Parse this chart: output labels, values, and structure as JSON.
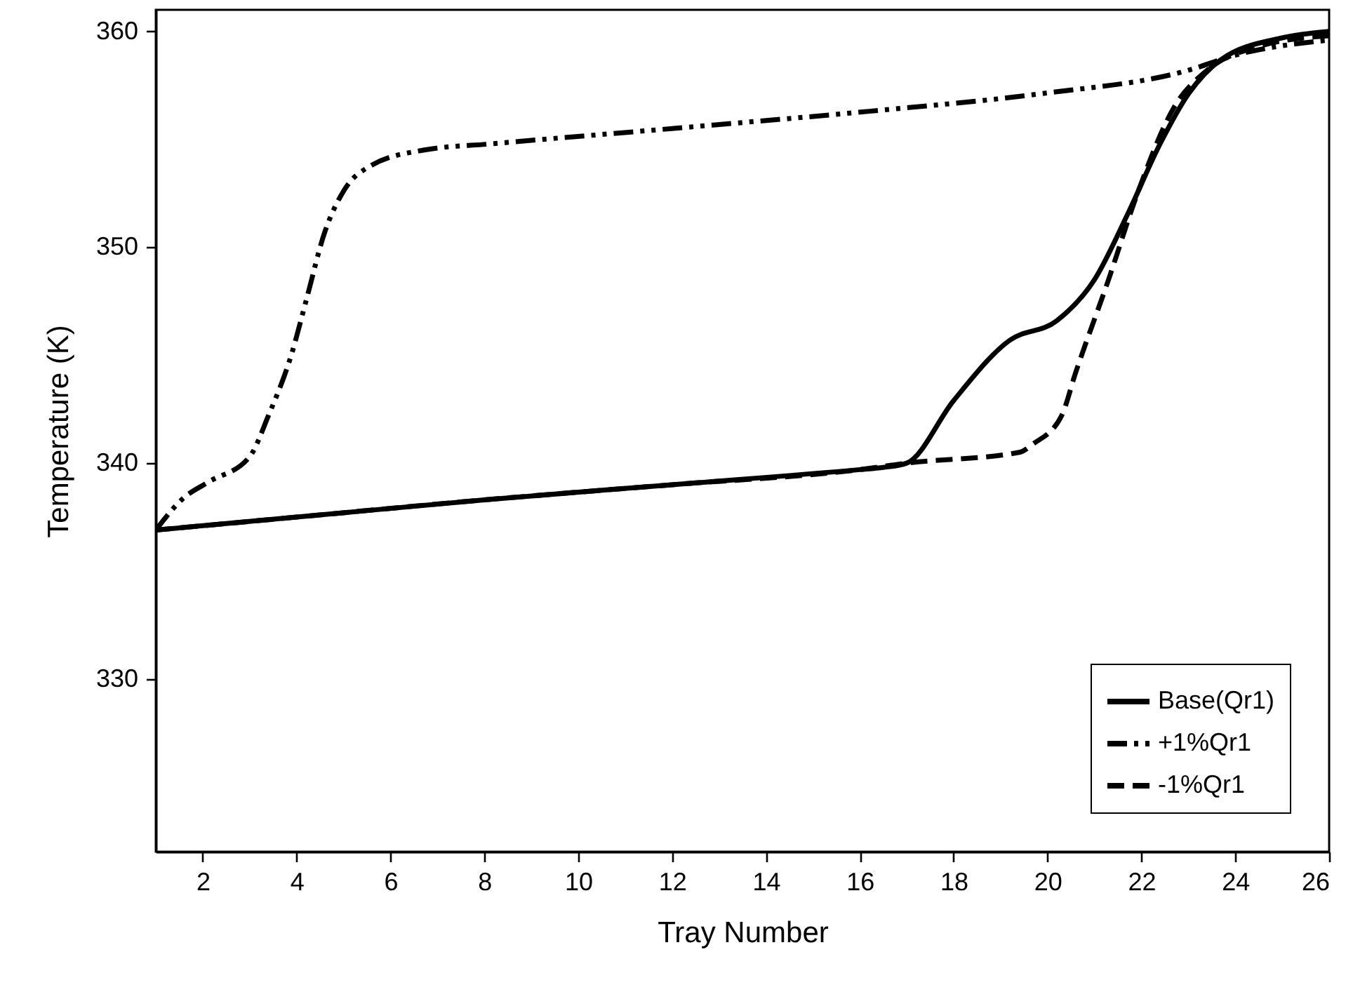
{
  "chart_data": {
    "type": "line",
    "xlabel": "Tray Number",
    "ylabel": "Temperature (K)",
    "xlim": [
      1,
      26
    ],
    "ylim": [
      322,
      361
    ],
    "xticks": [
      2,
      4,
      6,
      8,
      10,
      12,
      14,
      16,
      18,
      20,
      22,
      24,
      26
    ],
    "yticks": [
      330,
      340,
      350,
      360
    ],
    "grid": false,
    "legend": "bottom right",
    "marker": "none",
    "series": [
      {
        "name": "Base(Qr1)",
        "color": "#000000",
        "line_style": "solid",
        "x": [
          1,
          4,
          8,
          12,
          16,
          16.5,
          17,
          18,
          19.2,
          20.2,
          21,
          21.7,
          22.4,
          23,
          23.7,
          25,
          26
        ],
        "values": [
          336.9,
          337.5,
          338.3,
          339,
          339.7,
          339.8,
          340,
          342.9,
          345.7,
          346.6,
          348.5,
          351.5,
          354.8,
          357.1,
          358.7,
          359.7,
          360
        ]
      },
      {
        "name": "+1%Qr1",
        "color": "#000000",
        "line_style": "dashdotdot",
        "x": [
          1,
          1.6,
          2.1,
          3,
          3.4,
          3.9,
          4.2,
          4.6,
          5,
          5.6,
          6.7,
          8.2,
          12,
          16.2,
          19.8,
          23,
          24,
          26
        ],
        "values": [
          336.9,
          338.4,
          339.1,
          340.3,
          342.2,
          345.1,
          347.5,
          350.7,
          352.6,
          353.8,
          354.5,
          354.8,
          355.5,
          356.3,
          357.1,
          358.2,
          358.9,
          359.6
        ]
      },
      {
        "name": "-1%Qr1",
        "color": "#000000",
        "line_style": "dashed",
        "x": [
          1,
          4,
          8,
          12,
          16,
          17,
          19.4,
          19.7,
          20.3,
          20.6,
          21.3,
          21.9,
          22.7,
          23.4,
          24.5,
          26
        ],
        "values": [
          336.9,
          337.5,
          338.3,
          339,
          339.7,
          340,
          340.5,
          340.9,
          342.2,
          344.2,
          348.5,
          352.4,
          356.5,
          358.2,
          359.3,
          359.8
        ]
      }
    ]
  }
}
